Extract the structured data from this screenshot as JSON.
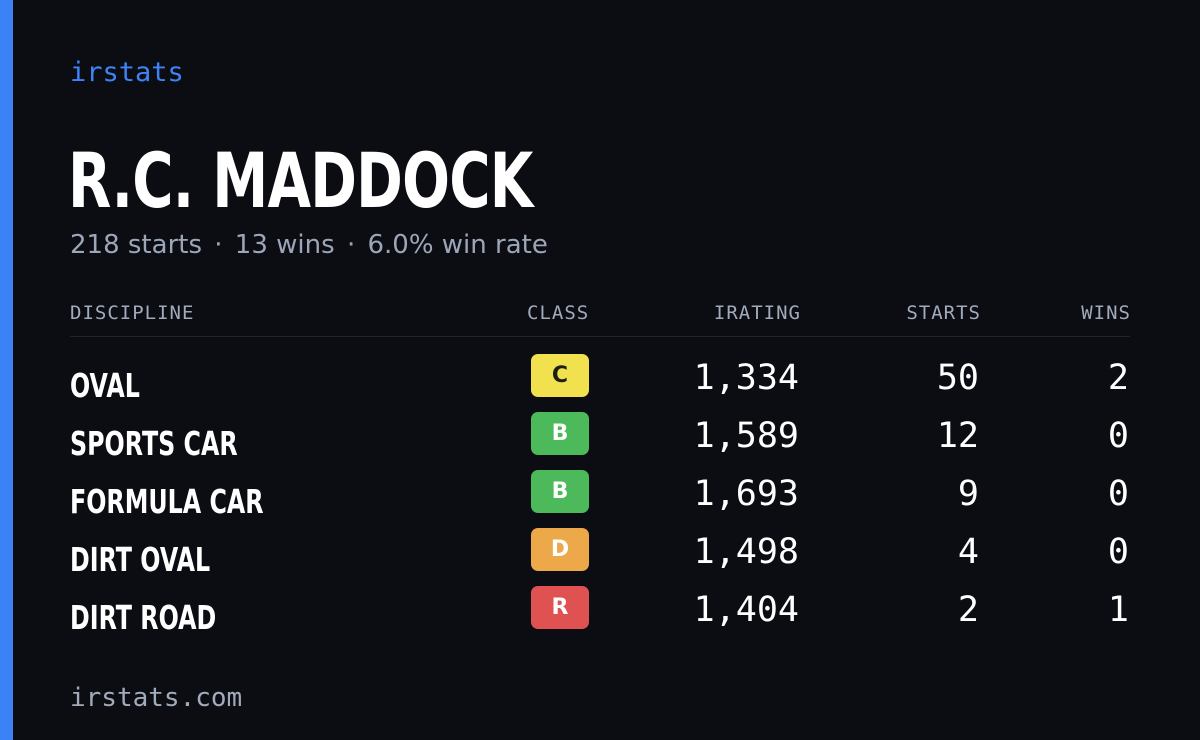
{
  "brand": "irstats",
  "player": {
    "name": "R.C. MADDOCK",
    "starts_text": "218 starts",
    "wins_text": "13 wins",
    "winrate_text": "6.0% win rate",
    "separator": "·"
  },
  "table": {
    "headers": {
      "discipline": "DISCIPLINE",
      "class": "CLASS",
      "irating": "IRATING",
      "starts": "STARTS",
      "wins": "WINS"
    },
    "rows": [
      {
        "discipline": "OVAL",
        "class": "C",
        "class_color": "#f2e14f",
        "class_text_color": "#1d1f14",
        "irating": "1,334",
        "starts": "50",
        "wins": "2"
      },
      {
        "discipline": "SPORTS CAR",
        "class": "B",
        "class_color": "#4cb95a",
        "class_text_color": "#ffffff",
        "irating": "1,589",
        "starts": "12",
        "wins": "0"
      },
      {
        "discipline": "FORMULA CAR",
        "class": "B",
        "class_color": "#4cb95a",
        "class_text_color": "#ffffff",
        "irating": "1,693",
        "starts": "9",
        "wins": "0"
      },
      {
        "discipline": "DIRT OVAL",
        "class": "D",
        "class_color": "#eda84a",
        "class_text_color": "#ffffff",
        "irating": "1,498",
        "starts": "4",
        "wins": "0"
      },
      {
        "discipline": "DIRT ROAD",
        "class": "R",
        "class_color": "#e05252",
        "class_text_color": "#ffffff",
        "irating": "1,404",
        "starts": "2",
        "wins": "1"
      }
    ]
  },
  "footer": "irstats.com",
  "colors": {
    "accent": "#3b82f6",
    "background": "#0b0d13",
    "muted": "#9ca6b8"
  }
}
